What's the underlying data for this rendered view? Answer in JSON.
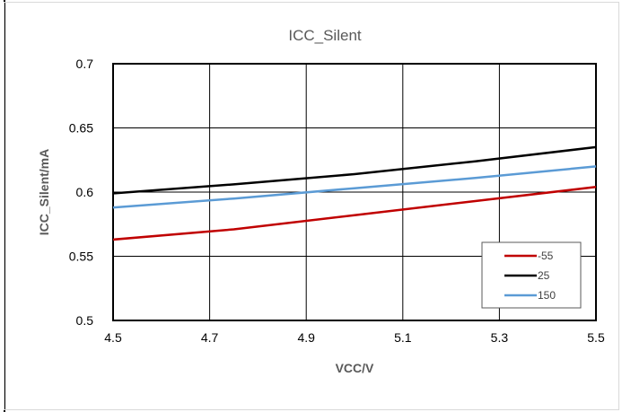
{
  "chart_data": {
    "type": "line",
    "title": "ICC_Silent",
    "xlabel": "VCC/V",
    "ylabel": "ICC_Silent/mA",
    "xlim": [
      4.5,
      5.5
    ],
    "ylim": [
      0.5,
      0.7
    ],
    "x_ticks": [
      "4.5",
      "4.7",
      "4.9",
      "5.1",
      "5.3",
      "5.5"
    ],
    "y_ticks": [
      "0.5",
      "0.55",
      "0.6",
      "0.65",
      "0.7"
    ],
    "grid": true,
    "legend_position": "bottom-right",
    "x": [
      4.5,
      4.75,
      5.0,
      5.25,
      5.5
    ],
    "series": [
      {
        "name": "-55",
        "color": "#c00000",
        "values": [
          0.563,
          0.571,
          0.582,
          0.593,
          0.604
        ]
      },
      {
        "name": "25",
        "color": "#000000",
        "values": [
          0.599,
          0.606,
          0.614,
          0.624,
          0.635
        ]
      },
      {
        "name": "150",
        "color": "#5b9bd5",
        "values": [
          0.588,
          0.595,
          0.603,
          0.611,
          0.62
        ]
      }
    ]
  }
}
